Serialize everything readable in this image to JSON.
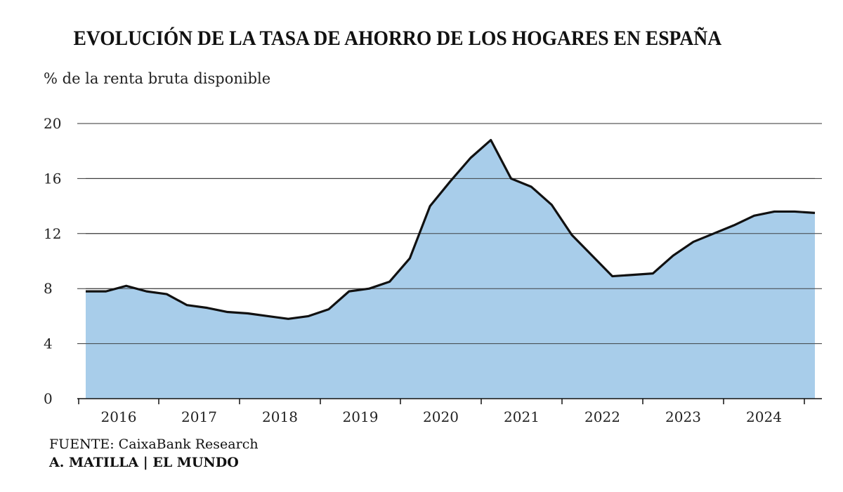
{
  "chart_data": {
    "type": "area",
    "title": "EVOLUCIÓN DE LA TASA DE AHORRO DE LOS HOGARES EN ESPAÑA",
    "ylabel": "% de la renta bruta disponible",
    "xlabel": "",
    "ylim": [
      0,
      20
    ],
    "yticks": [
      0,
      4,
      8,
      12,
      16,
      20
    ],
    "years": [
      "2016",
      "2017",
      "2018",
      "2019",
      "2020",
      "2021",
      "2022",
      "2023",
      "2024"
    ],
    "x": [
      2015.75,
      2016.0,
      2016.25,
      2016.5,
      2016.75,
      2017.0,
      2017.25,
      2017.5,
      2017.75,
      2018.0,
      2018.25,
      2018.5,
      2018.75,
      2019.0,
      2019.25,
      2019.5,
      2019.75,
      2020.0,
      2020.25,
      2020.5,
      2020.75,
      2021.0,
      2021.25,
      2021.5,
      2021.75,
      2022.0,
      2022.25,
      2022.5,
      2022.75,
      2023.0,
      2023.25,
      2023.5,
      2023.75,
      2024.0,
      2024.25,
      2024.5,
      2024.75
    ],
    "values": [
      7.8,
      7.8,
      8.2,
      7.8,
      7.6,
      6.8,
      6.6,
      6.3,
      6.2,
      6.0,
      5.8,
      6.0,
      6.5,
      7.8,
      8.0,
      8.5,
      10.2,
      14.0,
      15.8,
      17.5,
      18.8,
      16.0,
      15.4,
      14.1,
      11.9,
      10.4,
      8.9,
      9.0,
      9.1,
      10.4,
      11.4,
      12.0,
      12.6,
      13.3,
      13.6,
      13.6,
      13.5
    ],
    "series_color": "#a8cdea",
    "line_color": "#111111",
    "grid": true
  },
  "footer": {
    "source": "FUENTE: CaixaBank Research",
    "credit": "A. MATILLA | EL MUNDO"
  }
}
